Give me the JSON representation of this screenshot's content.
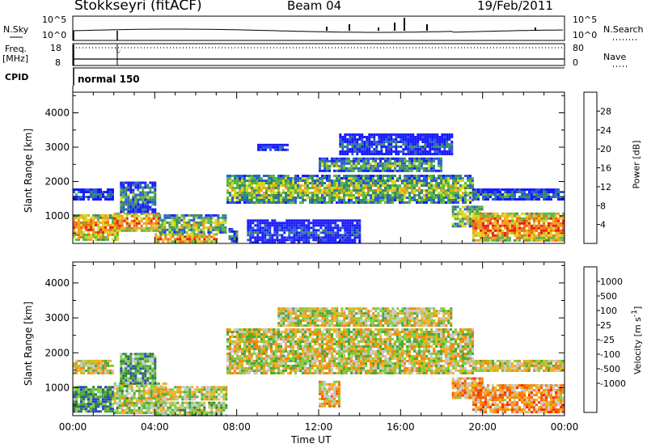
{
  "header": {
    "title": "Stokkseyri (fitACF)",
    "beam": "Beam 04",
    "date": "19/Feb/2011"
  },
  "info_panels": {
    "nsky_label": "N.Sky",
    "nsky_scale_top": "10^5",
    "nsky_scale_bottom": "10^0",
    "nsearch_label": "N.Search",
    "nsearch_scale_top": "10^5",
    "nsearch_scale_bottom": "10^0",
    "freq_label": "Freq.",
    "freq_unit": "[MHz]",
    "freq_ticks": [
      "18",
      "8"
    ],
    "nave_label": "Nave",
    "nave_ticks": [
      "80",
      "0"
    ],
    "cpid_label": "CPID",
    "cpid_value": "normal 150"
  },
  "colors": {
    "power_scale": [
      "#1a1aff",
      "#2b5cd6",
      "#3a8a6a",
      "#59b848",
      "#d8d820",
      "#f0a020",
      "#f06a10",
      "#e82010"
    ],
    "velocity_scale": [
      "#2a45c8",
      "#2f7a45",
      "#4fa83a",
      "#80d040",
      "#c8c8c8",
      "#f0b020",
      "#f08a10",
      "#ff5a00",
      "#ff2a00",
      "#d80000"
    ]
  },
  "chart_data": [
    {
      "type": "heatmap",
      "name": "power",
      "xlabel": "Time UT",
      "ylabel": "Slant Range [km]",
      "x_ticks": [
        "00:00",
        "04:00",
        "08:00",
        "12:00",
        "16:00",
        "20:00",
        "00:00"
      ],
      "x_range_hours": [
        0,
        24
      ],
      "y_ticks": [
        1000,
        2000,
        3000,
        4000
      ],
      "ylim": [
        200,
        4600
      ],
      "colorbar_label": "Power [dB]",
      "colorbar_ticks": [
        "28",
        "24",
        "20",
        "16",
        "12",
        "8",
        "4"
      ],
      "regions": [
        {
          "t0": 0.0,
          "t1": 2.2,
          "r0": 300,
          "r1": 1050,
          "level": 0.8
        },
        {
          "t0": 2.0,
          "t1": 4.2,
          "r0": 600,
          "r1": 1100,
          "level": 0.85
        },
        {
          "t0": 2.3,
          "t1": 4.0,
          "r0": 1150,
          "r1": 2000,
          "level": 0.35
        },
        {
          "t0": 0.0,
          "t1": 2.0,
          "r0": 1500,
          "r1": 1800,
          "level": 0.25
        },
        {
          "t0": 4.2,
          "t1": 7.5,
          "r0": 500,
          "r1": 1050,
          "level": 0.55
        },
        {
          "t0": 4.0,
          "t1": 7.0,
          "r0": 250,
          "r1": 500,
          "level": 0.8
        },
        {
          "t0": 7.6,
          "t1": 8.0,
          "r0": 250,
          "r1": 650,
          "level": 0.3
        },
        {
          "t0": 7.5,
          "t1": 19.5,
          "r0": 1400,
          "r1": 2200,
          "level": 0.55
        },
        {
          "t0": 12.0,
          "t1": 18.0,
          "r0": 2300,
          "r1": 2700,
          "level": 0.45
        },
        {
          "t0": 13.0,
          "t1": 18.5,
          "r0": 2800,
          "r1": 3400,
          "level": 0.2
        },
        {
          "t0": 9.0,
          "t1": 10.5,
          "r0": 2900,
          "r1": 3100,
          "level": 0.2
        },
        {
          "t0": 19.5,
          "t1": 24.0,
          "r0": 1500,
          "r1": 1800,
          "level": 0.3
        },
        {
          "t0": 18.5,
          "t1": 20.0,
          "r0": 700,
          "r1": 1300,
          "level": 0.6
        },
        {
          "t0": 19.5,
          "t1": 24.0,
          "r0": 300,
          "r1": 1100,
          "level": 0.85
        },
        {
          "t0": 8.5,
          "t1": 14.0,
          "r0": 200,
          "r1": 900,
          "level": 0.15
        }
      ]
    },
    {
      "type": "heatmap",
      "name": "velocity",
      "xlabel": "Time UT",
      "ylabel": "Slant Range [km]",
      "x_ticks": [
        "00:00",
        "04:00",
        "08:00",
        "12:00",
        "16:00",
        "20:00",
        "00:00"
      ],
      "x_range_hours": [
        0,
        24
      ],
      "y_ticks": [
        1000,
        2000,
        3000,
        4000
      ],
      "ylim": [
        200,
        4600
      ],
      "colorbar_label": "Velocity [m s^-1]",
      "colorbar_ticks": [
        "1000",
        "500",
        "100",
        "25",
        "-25",
        "-100",
        "-500",
        "-1000"
      ],
      "regions": [
        {
          "t0": 0.0,
          "t1": 2.0,
          "r0": 300,
          "r1": 1050,
          "level": 0.2
        },
        {
          "t0": 0.0,
          "t1": 2.0,
          "r0": 1450,
          "r1": 1800,
          "level": 0.45
        },
        {
          "t0": 2.0,
          "t1": 4.5,
          "r0": 300,
          "r1": 1150,
          "level": 0.4
        },
        {
          "t0": 2.3,
          "t1": 4.0,
          "r0": 1150,
          "r1": 2000,
          "level": 0.25
        },
        {
          "t0": 4.0,
          "t1": 7.5,
          "r0": 700,
          "r1": 1050,
          "level": 0.45
        },
        {
          "t0": 4.0,
          "t1": 7.5,
          "r0": 250,
          "r1": 600,
          "level": 0.35
        },
        {
          "t0": 7.5,
          "t1": 19.5,
          "r0": 1400,
          "r1": 2700,
          "level": 0.45
        },
        {
          "t0": 10.0,
          "t1": 18.5,
          "r0": 2800,
          "r1": 3300,
          "level": 0.45
        },
        {
          "t0": 12.0,
          "t1": 13.0,
          "r0": 500,
          "r1": 1200,
          "level": 0.55
        },
        {
          "t0": 18.5,
          "t1": 20.0,
          "r0": 700,
          "r1": 1300,
          "level": 0.6
        },
        {
          "t0": 19.5,
          "t1": 24.0,
          "r0": 300,
          "r1": 1100,
          "level": 0.62
        },
        {
          "t0": 19.5,
          "t1": 24.0,
          "r0": 1500,
          "r1": 1800,
          "level": 0.45
        }
      ]
    }
  ]
}
